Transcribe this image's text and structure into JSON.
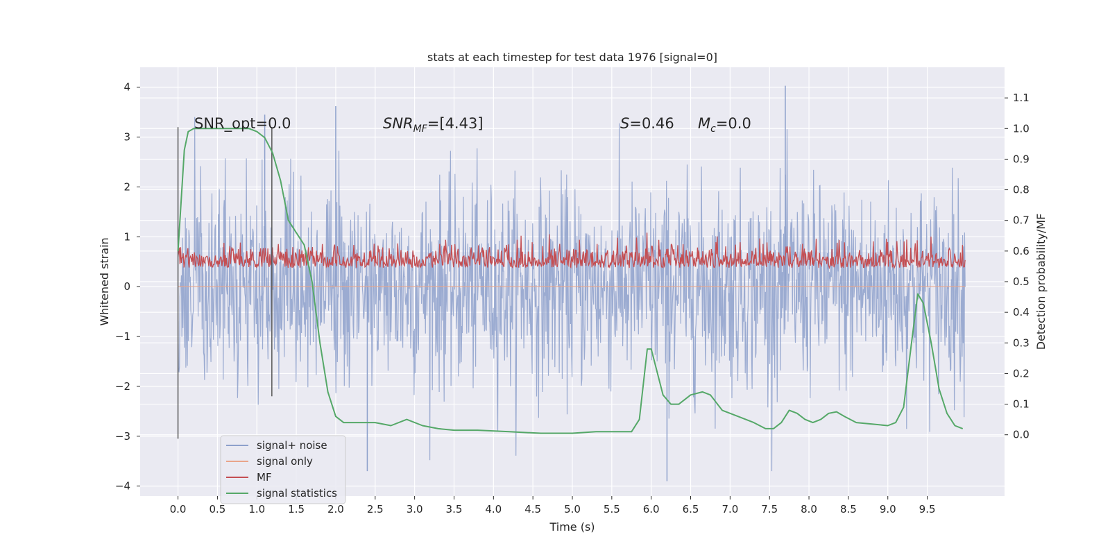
{
  "chart_data": {
    "type": "line",
    "title": "stats at each timestep for test data 1976 [signal=0]",
    "xlabel": "Time (s)",
    "ylabel": "Whitened strain",
    "ylabel_right": "Detection probability/MF",
    "xlim": [
      -0.48,
      10.48
    ],
    "ylim": [
      -4.2,
      4.4
    ],
    "ylim_right": [
      -0.2,
      1.2
    ],
    "x_ticks": [
      "0.0",
      "0.5",
      "1.0",
      "1.5",
      "2.0",
      "2.5",
      "3.0",
      "3.5",
      "4.0",
      "4.5",
      "5.0",
      "5.5",
      "6.0",
      "6.5",
      "7.0",
      "7.5",
      "8.0",
      "8.5",
      "9.0",
      "9.5"
    ],
    "y_ticks": [
      "−4",
      "−3",
      "−2",
      "−1",
      "0",
      "1",
      "2",
      "3",
      "4"
    ],
    "y_ticks_right": [
      "0.0",
      "0.1",
      "0.2",
      "0.3",
      "0.4",
      "0.5",
      "0.6",
      "0.7",
      "0.8",
      "0.9",
      "1.0",
      "1.1"
    ],
    "grid": true,
    "legend_position": "lower-left",
    "legend": [
      "signal+ noise",
      "signal only",
      "MF",
      "signal statistics"
    ],
    "colors": {
      "signal_noise": "#8da0cb",
      "signal_only": "#e9a58a",
      "mf": "#c44e52",
      "signal_statistics": "#55a868",
      "background": "#eaeaf2",
      "grid": "#ffffff",
      "vline": "#555555"
    },
    "annotations": [
      {
        "text": "SNR_opt=0.0"
      },
      {
        "text": "SNR",
        "sub": "MF",
        "suffix": "=[4.43]"
      },
      {
        "text": "S",
        "suffix": "=0.46"
      },
      {
        "text": "M",
        "sub": "c",
        "suffix": "=0.0"
      }
    ],
    "vertical_lines": [
      {
        "x": 0.0,
        "y_range": [
          -3.05,
          3.2
        ]
      },
      {
        "x": 1.19,
        "y_range": [
          -2.2,
          3.2
        ]
      }
    ],
    "series": [
      {
        "name": "signal+ noise",
        "description": "whitened strain noise, roughly within -2 to 2 with spikes to about 4",
        "x_range": [
          0.0,
          9.98
        ],
        "approx_range": [
          -3.7,
          4.0
        ],
        "notable_peaks": [
          [
            7.7,
            4.03
          ],
          [
            2.0,
            3.62
          ],
          [
            1.1,
            3.45
          ],
          [
            6.2,
            -3.9
          ],
          [
            2.4,
            -3.7
          ]
        ]
      },
      {
        "name": "signal only",
        "description": "zero signal (signal=0)",
        "x": [
          0.0,
          9.98
        ],
        "y": [
          0.0,
          0.0
        ]
      },
      {
        "name": "MF",
        "axis": "right",
        "description": "matched filter output, mostly 0.50-0.60 with peaks near 0.65",
        "x_range": [
          0.0,
          9.98
        ],
        "approx_range": [
          0.5,
          0.66
        ]
      },
      {
        "name": "signal statistics",
        "axis": "right",
        "x": [
          0.0,
          0.08,
          0.13,
          0.2,
          0.3,
          0.5,
          0.7,
          0.9,
          1.0,
          1.1,
          1.2,
          1.3,
          1.4,
          1.5,
          1.6,
          1.7,
          1.8,
          1.9,
          2.0,
          2.1,
          2.3,
          2.5,
          2.7,
          2.9,
          3.1,
          3.3,
          3.5,
          3.8,
          4.2,
          4.6,
          5.0,
          5.3,
          5.6,
          5.75,
          5.85,
          5.95,
          6.0,
          6.05,
          6.15,
          6.25,
          6.35,
          6.5,
          6.65,
          6.75,
          6.9,
          7.1,
          7.3,
          7.45,
          7.55,
          7.65,
          7.75,
          7.85,
          7.95,
          8.05,
          8.15,
          8.25,
          8.35,
          8.45,
          8.6,
          8.8,
          9.0,
          9.1,
          9.2,
          9.3,
          9.38,
          9.45,
          9.55,
          9.65,
          9.75,
          9.85,
          9.95
        ],
        "y": [
          0.6,
          0.93,
          0.99,
          1.0,
          1.0,
          1.0,
          1.0,
          1.0,
          0.99,
          0.97,
          0.92,
          0.83,
          0.7,
          0.66,
          0.62,
          0.5,
          0.3,
          0.14,
          0.06,
          0.04,
          0.04,
          0.04,
          0.03,
          0.05,
          0.03,
          0.02,
          0.015,
          0.015,
          0.01,
          0.005,
          0.005,
          0.01,
          0.01,
          0.01,
          0.05,
          0.28,
          0.28,
          0.23,
          0.13,
          0.1,
          0.1,
          0.13,
          0.14,
          0.13,
          0.08,
          0.06,
          0.04,
          0.02,
          0.02,
          0.04,
          0.08,
          0.07,
          0.05,
          0.04,
          0.05,
          0.07,
          0.075,
          0.06,
          0.04,
          0.035,
          0.03,
          0.04,
          0.09,
          0.3,
          0.46,
          0.43,
          0.3,
          0.15,
          0.07,
          0.03,
          0.02
        ]
      }
    ]
  }
}
